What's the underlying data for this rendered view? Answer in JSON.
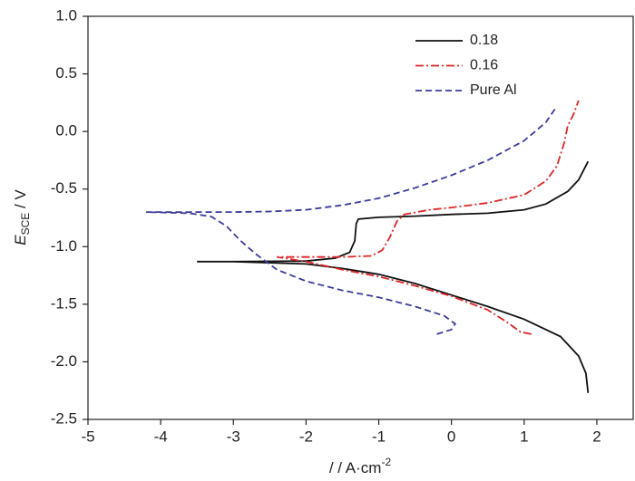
{
  "chart_data": {
    "type": "line",
    "xlabel": [
      "/ / A·cm",
      "-2"
    ],
    "ylabel": [
      "E",
      "SCE",
      " / V"
    ],
    "xlim": [
      -5,
      2.5
    ],
    "ylim": [
      -2.5,
      1.0
    ],
    "xticks": [
      -5,
      -4,
      -3,
      -2,
      -1,
      0,
      1,
      2
    ],
    "yticks": [
      {
        "value": -2.5,
        "label": "-2.5"
      },
      {
        "value": -2.0,
        "label": "-2.0"
      },
      {
        "value": -1.5,
        "label": "-1.5"
      },
      {
        "value": -1.0,
        "label": "-1.0"
      },
      {
        "value": -0.5,
        "label": "-0.5"
      },
      {
        "value": 0,
        "label": "0.0"
      },
      {
        "value": 0.5,
        "label": "0.5"
      },
      {
        "value": 1.0,
        "label": "1.0"
      }
    ],
    "legend": "upper right",
    "series": [
      {
        "name": "0.18",
        "color": "#111111",
        "linestyle": "solid",
        "x": [
          1.88,
          1.85,
          1.75,
          1.5,
          1.0,
          0.5,
          0,
          -0.5,
          -1,
          -1.5,
          -2,
          -2.5,
          -3,
          -3.5,
          -3,
          -2,
          -1.6,
          -1.4,
          -1.33,
          -1.31,
          -1.28,
          -1.0,
          -0.5,
          0,
          0.5,
          1.0,
          1.3,
          1.6,
          1.75,
          1.88
        ],
        "values": [
          -2.27,
          -2.1,
          -1.95,
          -1.78,
          -1.63,
          -1.52,
          -1.42,
          -1.32,
          -1.24,
          -1.19,
          -1.15,
          -1.14,
          -1.13,
          -1.13,
          -1.13,
          -1.125,
          -1.1,
          -1.05,
          -0.95,
          -0.8,
          -0.76,
          -0.745,
          -0.735,
          -0.72,
          -0.71,
          -0.68,
          -0.63,
          -0.52,
          -0.42,
          -0.26
        ]
      },
      {
        "name": "0.16",
        "color": "#e02525",
        "linestyle": "dashdot",
        "x": [
          1.1,
          0.95,
          0.75,
          0.5,
          0,
          -0.5,
          -1,
          -1.5,
          -2,
          -2.4,
          -2.0,
          -1.5,
          -1.1,
          -0.95,
          -0.85,
          -0.75,
          -0.65,
          -0.3,
          0,
          0.5,
          1.0,
          1.3,
          1.45,
          1.55,
          1.6,
          1.68,
          1.75
        ],
        "values": [
          -1.76,
          -1.74,
          -1.65,
          -1.55,
          -1.43,
          -1.34,
          -1.26,
          -1.2,
          -1.13,
          -1.09,
          -1.09,
          -1.09,
          -1.08,
          -1.03,
          -0.92,
          -0.78,
          -0.72,
          -0.68,
          -0.66,
          -0.62,
          -0.55,
          -0.43,
          -0.3,
          -0.1,
          0.05,
          0.15,
          0.27
        ]
      },
      {
        "name": "Pure Al",
        "color": "#3b3b9c",
        "linestyle": "dashed",
        "x": [
          -0.2,
          0,
          0.05,
          -0.1,
          -0.5,
          -1,
          -1.5,
          -2,
          -2.4,
          -2.7,
          -2.9,
          -3.1,
          -3.3,
          -3.6,
          -4.2,
          -3.5,
          -3,
          -2.5,
          -2,
          -1.5,
          -1,
          -0.5,
          0,
          0.5,
          1.0,
          1.3,
          1.45
        ],
        "values": [
          -1.76,
          -1.72,
          -1.67,
          -1.6,
          -1.52,
          -1.44,
          -1.38,
          -1.3,
          -1.2,
          -1.06,
          -0.95,
          -0.82,
          -0.74,
          -0.71,
          -0.7,
          -0.7,
          -0.7,
          -0.695,
          -0.68,
          -0.64,
          -0.58,
          -0.49,
          -0.38,
          -0.25,
          -0.08,
          0.08,
          0.22
        ]
      }
    ]
  }
}
